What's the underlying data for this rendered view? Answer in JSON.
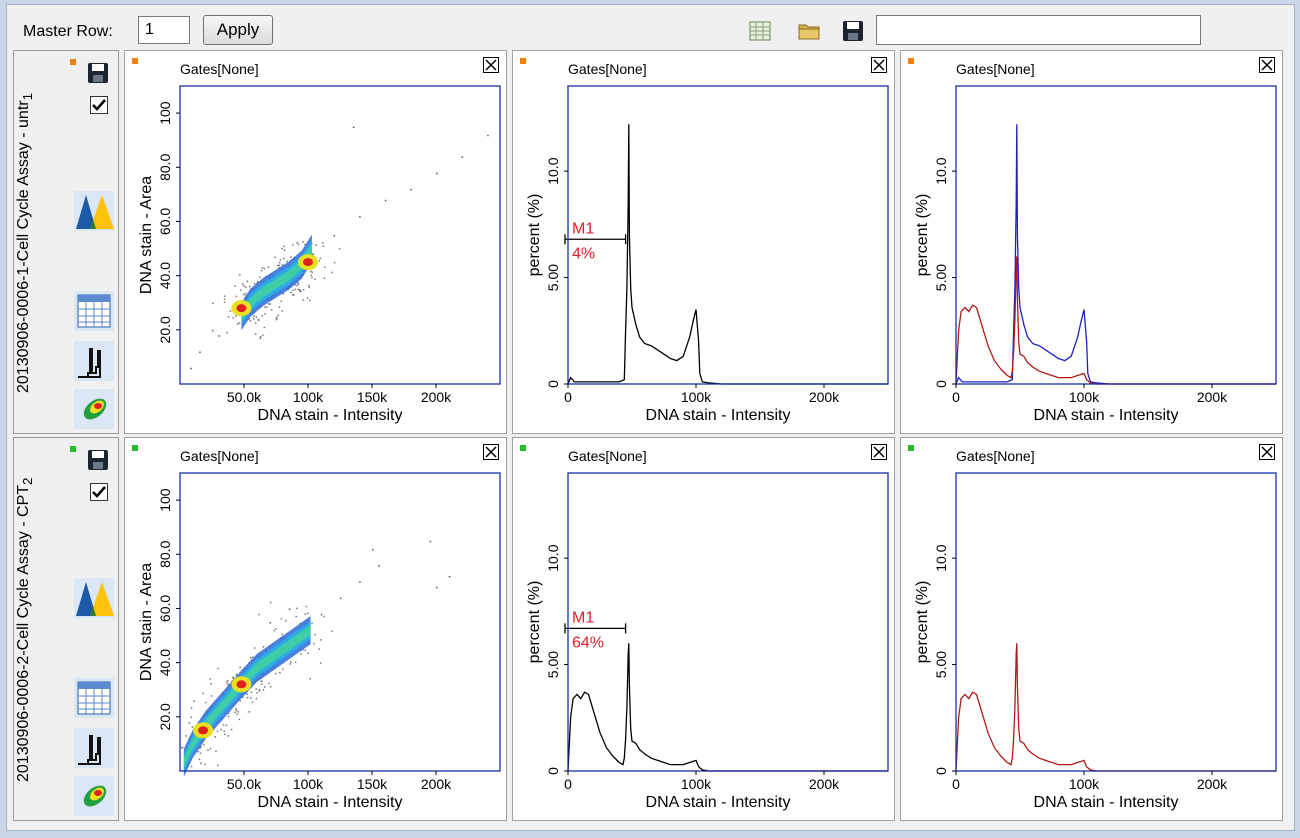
{
  "toolbar": {
    "master_row_label": "Master Row:",
    "master_row_value": "1",
    "apply_label": "Apply",
    "icons": [
      "table-icon",
      "folder-icon",
      "save-icon"
    ],
    "text_value": ""
  },
  "rows": [
    {
      "label": "20130906-0006-1-Cell Cycle Assay - untr",
      "number": "1",
      "marker_color": "#f08010",
      "checked": true
    },
    {
      "label": "20130906-0006-2-Cell Cycle Assay - CPT",
      "number": "2",
      "marker_color": "#22c022",
      "checked": true
    }
  ],
  "side_icons": [
    "save-icon",
    "checkbox-icon",
    "overlay-histogram-icon",
    "grid-table-icon",
    "histogram-icon",
    "density-plot-icon"
  ],
  "panels": {
    "gates_label": "Gates[None]",
    "scatter": {
      "xlabel": "DNA stain - Intensity",
      "ylabel": "DNA stain - Area"
    },
    "histogram": {
      "xlabel": "DNA stain - Intensity",
      "ylabel": "percent (%)"
    }
  },
  "chart_data": [
    {
      "type": "scatter",
      "row": 1,
      "title": "Gates[None]",
      "xlabel": "DNA stain - Intensity",
      "ylabel": "DNA stain - Area",
      "xlim": [
        0,
        250000
      ],
      "ylim": [
        0,
        110
      ],
      "xticks": [
        "50.0k",
        "100k",
        "150k",
        "200k"
      ],
      "xtick_values": [
        50000,
        100000,
        150000,
        200000
      ],
      "yticks": [
        "20.0",
        "40.0",
        "60.0",
        "80.0",
        "100"
      ],
      "ytick_values": [
        20,
        40,
        60,
        80,
        100
      ],
      "dense_core": [
        [
          48000,
          25
        ],
        [
          55000,
          30
        ],
        [
          65000,
          34
        ],
        [
          75000,
          37
        ],
        [
          85000,
          40
        ],
        [
          95000,
          44
        ],
        [
          103000,
          50
        ]
      ],
      "hot_spots": [
        [
          48000,
          28
        ],
        [
          100000,
          45
        ]
      ],
      "sparse_points": [
        [
          120000,
          55
        ],
        [
          140000,
          62
        ],
        [
          160000,
          68
        ],
        [
          180000,
          72
        ],
        [
          200000,
          78
        ],
        [
          220000,
          84
        ],
        [
          240000,
          92
        ],
        [
          135000,
          95
        ],
        [
          25000,
          20
        ],
        [
          15000,
          12
        ],
        [
          8000,
          6
        ],
        [
          30000,
          18
        ]
      ]
    },
    {
      "type": "line",
      "row": 1,
      "title": "Gates[None]",
      "xlabel": "DNA stain - Intensity",
      "ylabel": "percent (%)",
      "xlim": [
        0,
        250000
      ],
      "ylim": [
        0,
        14
      ],
      "xticks": [
        "0",
        "100k",
        "200k"
      ],
      "xtick_values": [
        0,
        100000,
        200000
      ],
      "yticks": [
        "0",
        "5.00",
        "10.0"
      ],
      "ytick_values": [
        0,
        5,
        10
      ],
      "marker": {
        "label": "M1",
        "value": "4%",
        "x_range": [
          0,
          45000
        ],
        "y": 6.8
      },
      "series": [
        {
          "color": "#000000",
          "x": [
            0,
            2000,
            5000,
            10000,
            20000,
            30000,
            40000,
            44000,
            45000,
            46000,
            47000,
            47500,
            48000,
            49000,
            50000,
            53000,
            56000,
            60000,
            65000,
            70000,
            75000,
            80000,
            85000,
            90000,
            95000,
            98000,
            100000,
            102000,
            103000,
            105000,
            110000,
            120000,
            150000,
            250000
          ],
          "y": [
            0,
            0.3,
            0.1,
            0.1,
            0.1,
            0.1,
            0.1,
            0.2,
            2.5,
            4.5,
            8.5,
            12.2,
            7.0,
            4.5,
            3.6,
            2.8,
            2.2,
            1.9,
            1.8,
            1.6,
            1.4,
            1.2,
            1.1,
            1.3,
            2.2,
            3.0,
            3.5,
            2.0,
            0.5,
            0.1,
            0.05,
            0,
            0,
            0
          ]
        }
      ]
    },
    {
      "type": "line",
      "row": 1,
      "title": "Gates[None]",
      "xlabel": "DNA stain - Intensity",
      "ylabel": "percent (%)",
      "xlim": [
        0,
        250000
      ],
      "ylim": [
        0,
        14
      ],
      "xticks": [
        "0",
        "100k",
        "200k"
      ],
      "xtick_values": [
        0,
        100000,
        200000
      ],
      "yticks": [
        "0",
        "5.00",
        "10.0"
      ],
      "ytick_values": [
        0,
        5,
        10
      ],
      "series": [
        {
          "color": "#2020c0",
          "x": [
            0,
            2000,
            5000,
            10000,
            20000,
            30000,
            40000,
            44000,
            45000,
            46000,
            47000,
            47500,
            48000,
            49000,
            50000,
            53000,
            56000,
            60000,
            65000,
            70000,
            75000,
            80000,
            85000,
            90000,
            95000,
            98000,
            100000,
            102000,
            103000,
            105000,
            110000,
            120000,
            150000,
            250000
          ],
          "y": [
            0,
            0.3,
            0.1,
            0.1,
            0.1,
            0.1,
            0.1,
            0.2,
            2.5,
            4.5,
            8.5,
            12.2,
            7.0,
            4.5,
            3.6,
            2.8,
            2.2,
            1.9,
            1.8,
            1.6,
            1.4,
            1.2,
            1.1,
            1.3,
            2.2,
            3.0,
            3.5,
            2.0,
            0.5,
            0.1,
            0.05,
            0,
            0,
            0
          ]
        },
        {
          "color": "#b01818",
          "x": [
            0,
            2000,
            4000,
            7000,
            10000,
            13000,
            16000,
            20000,
            25000,
            30000,
            35000,
            40000,
            43000,
            44000,
            45000,
            46000,
            47000,
            47500,
            48000,
            49000,
            50000,
            53000,
            56000,
            60000,
            65000,
            70000,
            80000,
            90000,
            95000,
            100000,
            102000,
            105000,
            110000,
            130000,
            160000,
            250000
          ],
          "y": [
            0,
            2.5,
            3.4,
            3.6,
            3.4,
            3.7,
            3.6,
            2.8,
            1.8,
            1.1,
            0.7,
            0.4,
            0.3,
            0.6,
            1.5,
            3.0,
            5.5,
            6.0,
            4.0,
            2.0,
            1.4,
            1.3,
            1.0,
            0.8,
            0.6,
            0.5,
            0.3,
            0.3,
            0.4,
            0.5,
            0.2,
            0.05,
            0,
            0,
            0,
            0
          ]
        }
      ]
    },
    {
      "type": "scatter",
      "row": 2,
      "title": "Gates[None]",
      "xlabel": "DNA stain - Intensity",
      "ylabel": "DNA stain - Area",
      "xlim": [
        0,
        250000
      ],
      "ylim": [
        0,
        110
      ],
      "xticks": [
        "50.0k",
        "100k",
        "150k",
        "200k"
      ],
      "xtick_values": [
        50000,
        100000,
        150000,
        200000
      ],
      "yticks": [
        "20.0",
        "40.0",
        "60.0",
        "80.0",
        "100"
      ],
      "ytick_values": [
        20,
        40,
        60,
        80,
        100
      ],
      "dense_core": [
        [
          3000,
          3
        ],
        [
          10000,
          10
        ],
        [
          20000,
          17
        ],
        [
          35000,
          25
        ],
        [
          48000,
          32
        ],
        [
          60000,
          38
        ],
        [
          75000,
          43
        ],
        [
          90000,
          48
        ],
        [
          102000,
          52
        ]
      ],
      "hot_spots": [
        [
          18000,
          15
        ],
        [
          48000,
          32
        ]
      ],
      "sparse_points": [
        [
          110000,
          58
        ],
        [
          125000,
          64
        ],
        [
          140000,
          70
        ],
        [
          150000,
          82
        ],
        [
          155000,
          76
        ],
        [
          195000,
          85
        ],
        [
          200000,
          68
        ],
        [
          210000,
          72
        ],
        [
          85000,
          60
        ],
        [
          70000,
          55
        ]
      ]
    },
    {
      "type": "line",
      "row": 2,
      "title": "Gates[None]",
      "xlabel": "DNA stain - Intensity",
      "ylabel": "percent (%)",
      "xlim": [
        0,
        250000
      ],
      "ylim": [
        0,
        14
      ],
      "xticks": [
        "0",
        "100k",
        "200k"
      ],
      "xtick_values": [
        0,
        100000,
        200000
      ],
      "yticks": [
        "0",
        "5.00",
        "10.0"
      ],
      "ytick_values": [
        0,
        5,
        10
      ],
      "marker": {
        "label": "M1",
        "value": "64%",
        "x_range": [
          0,
          45000
        ],
        "y": 6.7
      },
      "series": [
        {
          "color": "#000000",
          "x": [
            0,
            2000,
            4000,
            7000,
            10000,
            13000,
            16000,
            20000,
            25000,
            30000,
            35000,
            40000,
            43000,
            44000,
            45000,
            46000,
            47000,
            47500,
            48000,
            49000,
            50000,
            53000,
            56000,
            60000,
            65000,
            70000,
            80000,
            90000,
            95000,
            100000,
            102000,
            105000,
            110000,
            130000,
            160000,
            250000
          ],
          "y": [
            0,
            2.5,
            3.4,
            3.6,
            3.4,
            3.7,
            3.6,
            2.8,
            1.8,
            1.1,
            0.7,
            0.4,
            0.3,
            0.6,
            1.5,
            3.0,
            5.5,
            6.0,
            4.0,
            2.0,
            1.4,
            1.3,
            1.0,
            0.8,
            0.6,
            0.5,
            0.3,
            0.3,
            0.4,
            0.5,
            0.2,
            0.05,
            0,
            0,
            0,
            0
          ]
        }
      ]
    },
    {
      "type": "line",
      "row": 2,
      "title": "Gates[None]",
      "xlabel": "DNA stain - Intensity",
      "ylabel": "percent (%)",
      "xlim": [
        0,
        250000
      ],
      "ylim": [
        0,
        14
      ],
      "xticks": [
        "0",
        "100k",
        "200k"
      ],
      "xtick_values": [
        0,
        100000,
        200000
      ],
      "yticks": [
        "0",
        "5.00",
        "10.0"
      ],
      "ytick_values": [
        0,
        5,
        10
      ],
      "series": [
        {
          "color": "#b01818",
          "x": [
            0,
            2000,
            4000,
            7000,
            10000,
            13000,
            16000,
            20000,
            25000,
            30000,
            35000,
            40000,
            43000,
            44000,
            45000,
            46000,
            47000,
            47500,
            48000,
            49000,
            50000,
            53000,
            56000,
            60000,
            65000,
            70000,
            80000,
            90000,
            95000,
            100000,
            102000,
            105000,
            110000,
            130000,
            160000,
            250000
          ],
          "y": [
            0,
            2.5,
            3.4,
            3.6,
            3.4,
            3.7,
            3.6,
            2.8,
            1.8,
            1.1,
            0.7,
            0.4,
            0.3,
            0.6,
            1.5,
            3.0,
            5.5,
            6.0,
            4.0,
            2.0,
            1.4,
            1.3,
            1.0,
            0.8,
            0.6,
            0.5,
            0.3,
            0.3,
            0.4,
            0.5,
            0.2,
            0.05,
            0,
            0,
            0,
            0
          ]
        }
      ]
    }
  ]
}
